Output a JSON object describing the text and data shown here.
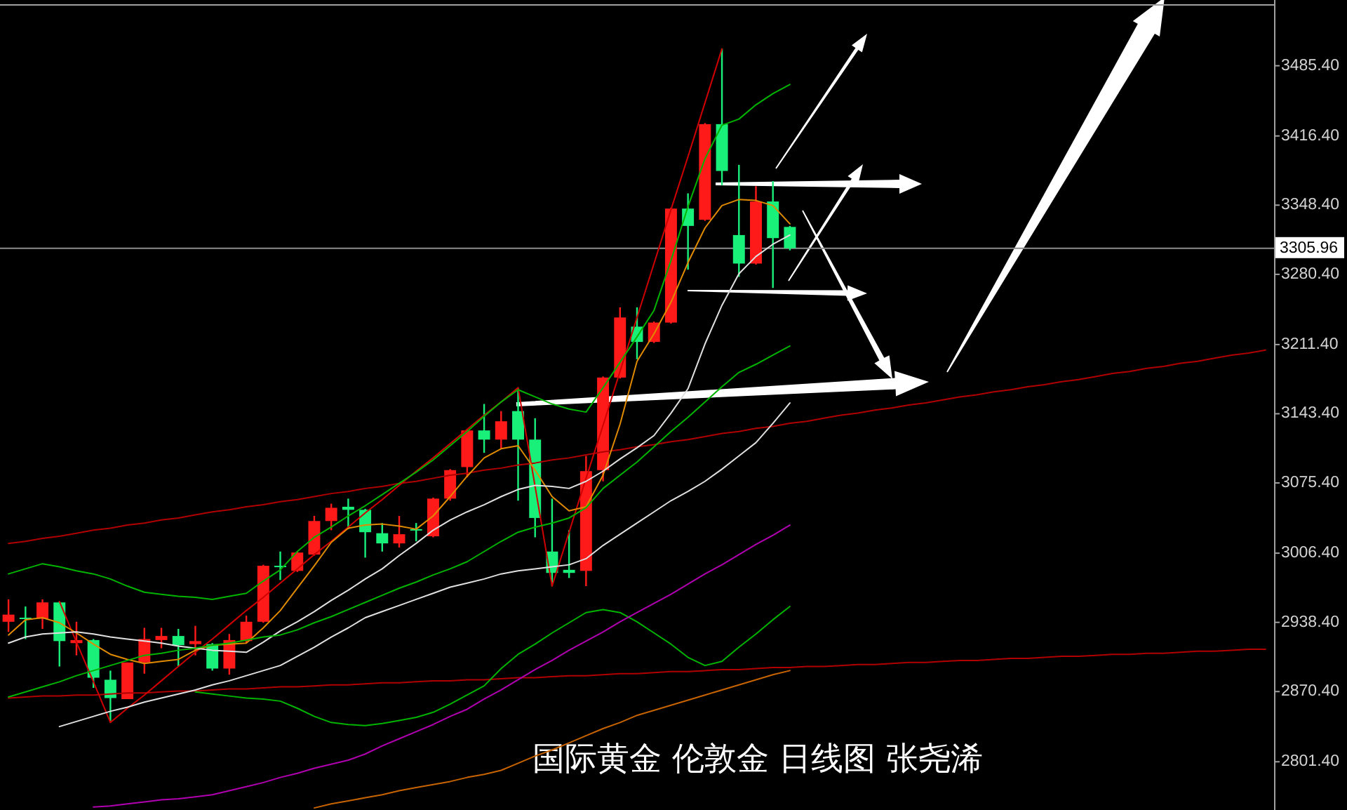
{
  "chart_data": [
    {
      "type": "candlestick",
      "annotations": [
        "国际黄金 伦敦金 日线图 张尧浠"
      ],
      "categories": [
        null,
        null,
        null,
        null,
        null,
        null,
        null,
        null,
        null,
        null,
        null,
        null,
        null,
        null,
        null,
        null,
        null,
        null,
        null,
        null,
        null,
        null,
        null,
        null,
        null,
        null,
        null,
        null,
        null,
        null,
        null,
        null,
        null,
        null,
        null,
        null,
        null,
        null,
        null,
        null,
        null,
        null,
        null,
        null,
        null,
        null,
        null,
        null,
        null,
        null,
        null,
        null,
        null,
        null,
        null,
        null,
        null,
        null,
        null,
        null,
        null,
        null,
        null,
        null,
        null,
        null,
        null,
        null,
        null,
        null,
        null,
        null,
        null,
        null,
        null
      ],
      "ohlc": [
        [
          2939,
          2961,
          2929,
          2946
        ],
        [
          2943,
          2954,
          2922,
          2942
        ],
        [
          2942,
          2961,
          2932,
          2958
        ],
        [
          2958,
          2959,
          2895,
          2920
        ],
        [
          2918,
          2939,
          2906,
          2921
        ],
        [
          2921,
          2922,
          2874,
          2884
        ],
        [
          2882,
          2891,
          2840,
          2864
        ],
        [
          2863,
          2899,
          2863,
          2899
        ],
        [
          2899,
          2933,
          2888,
          2922
        ],
        [
          2921,
          2933,
          2913,
          2925
        ],
        [
          2925,
          2932,
          2895,
          2916
        ],
        [
          2917,
          2935,
          2906,
          2920
        ],
        [
          2917,
          2918,
          2891,
          2893
        ],
        [
          2893,
          2927,
          2887,
          2921
        ],
        [
          2920,
          2945,
          2918,
          2939
        ],
        [
          2939,
          2995,
          2938,
          2994
        ],
        [
          2994,
          3008,
          2980,
          2993
        ],
        [
          2989,
          3008,
          2988,
          3007
        ],
        [
          3005,
          3043,
          3004,
          3038
        ],
        [
          3038,
          3055,
          3029,
          3051
        ],
        [
          3052,
          3060,
          3030,
          3049
        ],
        [
          3049,
          3050,
          3002,
          3027
        ],
        [
          3026,
          3036,
          3008,
          3016
        ],
        [
          3016,
          3043,
          3012,
          3025
        ],
        [
          3030,
          3036,
          3018,
          3029
        ],
        [
          3023,
          3061,
          3022,
          3060
        ],
        [
          3060,
          3089,
          3058,
          3088
        ],
        [
          3091,
          3128,
          3081,
          3127
        ],
        [
          3127,
          3153,
          3105,
          3118
        ],
        [
          3118,
          3146,
          3109,
          3136
        ],
        [
          3146,
          3169,
          3058,
          3118
        ],
        [
          3118,
          3139,
          3022,
          3041
        ],
        [
          3008,
          3060,
          2974,
          2987
        ],
        [
          2990,
          3029,
          2982,
          2987
        ],
        [
          2989,
          3102,
          2974,
          3087
        ],
        [
          3088,
          3180,
          3077,
          3179
        ],
        [
          3179,
          3248,
          3178,
          3238
        ],
        [
          3229,
          3248,
          3197,
          3214
        ],
        [
          3214,
          3234,
          3213,
          3233
        ],
        [
          3233,
          3346,
          3232,
          3345
        ],
        [
          3345,
          3360,
          3285,
          3328
        ],
        [
          3334,
          3429,
          3333,
          3428
        ],
        [
          3428,
          3502,
          3368,
          3382
        ],
        [
          3319,
          3388,
          3278,
          3291
        ],
        [
          3291,
          3367,
          3290,
          3352
        ],
        [
          3352,
          3372,
          3267,
          3316
        ],
        [
          3327,
          3328,
          3304,
          3306
        ],
        null,
        null,
        null,
        null,
        null,
        null,
        null,
        null,
        null,
        null,
        null,
        null,
        null,
        null,
        null,
        null,
        null,
        null,
        null,
        null,
        null,
        null,
        null,
        null,
        null,
        null,
        null,
        null
      ],
      "colors": [
        "#ff1a1a",
        "#19f07a",
        "#ff1a1a",
        "#19f07a",
        "#ff1a1a",
        "#19f07a",
        "#19f07a",
        "#ff1a1a",
        "#ff1a1a",
        "#ff1a1a",
        "#19f07a",
        "#ff1a1a",
        "#19f07a",
        "#ff1a1a",
        "#ff1a1a",
        "#ff1a1a",
        "#19f07a",
        "#ff1a1a",
        "#ff1a1a",
        "#ff1a1a",
        "#19f07a",
        "#19f07a",
        "#19f07a",
        "#ff1a1a",
        "#19f07a",
        "#ff1a1a",
        "#ff1a1a",
        "#ff1a1a",
        "#19f07a",
        "#ff1a1a",
        "#19f07a",
        "#19f07a",
        "#19f07a",
        "#19f07a",
        "#ff1a1a",
        "#ff1a1a",
        "#ff1a1a",
        "#19f07a",
        "#ff1a1a",
        "#ff1a1a",
        "#19f07a",
        "#ff1a1a",
        "#19f07a",
        "#19f07a",
        "#ff1a1a",
        "#19f07a",
        "#19f07a",
        null,
        null,
        null,
        null,
        null,
        null,
        null,
        null,
        null,
        null,
        null,
        null,
        null,
        null,
        null,
        null,
        null,
        null,
        null,
        null,
        null,
        null,
        null,
        null,
        null,
        null,
        null,
        null
      ],
      "ref_lines": [
        {
          "axis": "y",
          "value": 3305.96,
          "label": "3305.96",
          "color": "#8c8c8c"
        }
      ],
      "ylim": [
        2754,
        3550
      ],
      "yticks": [
        {
          "value": 3485.4,
          "label": "3485.40"
        },
        {
          "value": 3416.4,
          "label": "3416.40"
        },
        {
          "value": 3348.4,
          "label": "3348.40"
        },
        {
          "value": 3280.4,
          "label": "3280.40"
        },
        {
          "value": 3211.4,
          "label": "3211.40"
        },
        {
          "value": 3143.4,
          "label": "3143.40"
        },
        {
          "value": 3075.4,
          "label": "3075.40"
        },
        {
          "value": 3006.4,
          "label": "3006.40"
        },
        {
          "value": 2938.4,
          "label": "2938.40"
        },
        {
          "value": 2870.4,
          "label": "2870.40"
        },
        {
          "value": 2801.4,
          "label": "2801.40"
        }
      ],
      "tick_labels": "y"
    },
    {
      "type": "line",
      "categories": [
        null,
        null,
        null,
        null,
        null,
        null,
        null,
        null,
        null,
        null,
        null,
        null,
        null,
        null,
        null,
        null,
        null,
        null,
        null,
        null,
        null,
        null,
        null,
        null,
        null,
        null,
        null,
        null,
        null,
        null,
        null,
        null,
        null,
        null,
        null,
        null,
        null,
        null,
        null,
        null,
        null,
        null,
        null,
        null,
        null,
        null,
        null,
        null,
        null,
        null,
        null,
        null,
        null,
        null,
        null,
        null,
        null,
        null,
        null,
        null,
        null,
        null,
        null,
        null,
        null,
        null,
        null,
        null,
        null,
        null,
        null,
        null,
        null,
        null,
        null
      ],
      "series": [
        {
          "color": "#b00000",
          "values": [
            3016,
            3018,
            3021,
            3023,
            3026,
            3029,
            3031,
            3034,
            3036,
            3039,
            3041,
            3044,
            3047,
            3049,
            3052,
            3054,
            3057,
            3059,
            3062,
            3065,
            3067,
            3070,
            3072,
            3075,
            3077,
            3080,
            3083,
            3085,
            3088,
            3090,
            3093,
            3095,
            3098,
            3100,
            3103,
            3106,
            3108,
            3111,
            3113,
            3116,
            3118,
            3121,
            3124,
            3126,
            3129,
            3131,
            3134,
            3136,
            3139,
            3142,
            3144,
            3147,
            3149,
            3152,
            3154,
            3157,
            3160,
            3162,
            3165,
            3167,
            3170,
            3172,
            3175,
            3177,
            3180,
            3183,
            3185,
            3188,
            3190,
            3193,
            3195,
            3198,
            3201,
            3203,
            3206
          ]
        },
        {
          "color": "#b00000",
          "values": [
            2864,
            2865,
            2866,
            2866,
            2867,
            2867,
            2868,
            2869,
            2869,
            2870,
            2871,
            2871,
            2872,
            2873,
            2873,
            2874,
            2875,
            2875,
            2876,
            2877,
            2877,
            2878,
            2879,
            2879,
            2880,
            2881,
            2881,
            2882,
            2882,
            2883,
            2884,
            2884,
            2885,
            2886,
            2886,
            2887,
            2888,
            2888,
            2889,
            2890,
            2890,
            2891,
            2892,
            2892,
            2893,
            2894,
            2894,
            2895,
            2895,
            2896,
            2897,
            2897,
            2898,
            2899,
            2899,
            2900,
            2901,
            2901,
            2902,
            2903,
            2903,
            2904,
            2905,
            2905,
            2906,
            2907,
            2907,
            2908,
            2908,
            2909,
            2910,
            2910,
            2911,
            2912,
            2912
          ]
        },
        {
          "color": "#d00000",
          "values": [
            null,
            null,
            null,
            2959,
            2919,
            2880,
            2840,
            2854,
            2867,
            2881,
            2895,
            2909,
            2922,
            2936,
            2950,
            2963,
            2977,
            2991,
            3005,
            3018,
            3032,
            3046,
            3059,
            3073,
            3087,
            3100,
            3114,
            3128,
            3142,
            3155,
            3169,
            3072,
            2974,
            3027,
            3080,
            3132,
            3185,
            3238,
            3291,
            3344,
            3396,
            3449,
            3502,
            null,
            null,
            null,
            null,
            null,
            null,
            null,
            null,
            null,
            null,
            null,
            null,
            null,
            null,
            null,
            null,
            null,
            null,
            null,
            null,
            null,
            null,
            null,
            null,
            null,
            null,
            null,
            null,
            null,
            null,
            null,
            null
          ]
        },
        {
          "color": "#e08a00",
          "values": [
            2926,
            2941,
            2943,
            2938,
            2928,
            2917,
            2907,
            2902,
            2898,
            2900,
            2902,
            2911,
            2916,
            2917,
            2918,
            2933,
            2950,
            2972,
            2994,
            3017,
            3031,
            3034,
            3035,
            3033,
            3030,
            3043,
            3062,
            3082,
            3100,
            3109,
            3112,
            3088,
            3062,
            3048,
            3052,
            3083,
            3133,
            3195,
            3222,
            3253,
            3292,
            3326,
            3348,
            3354,
            3353,
            3348,
            3330,
            null,
            null,
            null,
            null,
            null,
            null,
            null,
            null,
            null,
            null,
            null,
            null,
            null,
            null,
            null,
            null,
            null,
            null,
            null,
            null,
            null,
            null,
            null,
            null,
            null,
            null,
            null,
            null
          ]
        },
        {
          "color": "#e0e0e0",
          "values": [
            2918,
            2924,
            2927,
            2928,
            2929,
            2927,
            2924,
            2922,
            2920,
            2918,
            2915,
            2913,
            2911,
            2910,
            2909,
            2919,
            2930,
            2939,
            2949,
            2960,
            2970,
            2981,
            2991,
            3004,
            3016,
            3029,
            3039,
            3047,
            3054,
            3062,
            3069,
            3073,
            3072,
            3070,
            3077,
            3087,
            3099,
            3110,
            3122,
            3144,
            3168,
            3212,
            3250,
            3281,
            3298,
            3310,
            3319,
            null,
            null,
            null,
            null,
            null,
            null,
            null,
            null,
            null,
            null,
            null,
            null,
            null,
            null,
            null,
            null,
            null,
            null,
            null,
            null,
            null,
            null,
            null,
            null,
            null,
            null,
            null,
            null
          ]
        },
        {
          "color": "#00b400",
          "values": [
            2986,
            2991,
            2996,
            2993,
            2989,
            2986,
            2981,
            2974,
            2968,
            2966,
            2964,
            2963,
            2961,
            2964,
            2967,
            2979,
            2990,
            3008,
            3022,
            3032,
            3043,
            3053,
            3064,
            3075,
            3086,
            3098,
            3112,
            3126,
            3141,
            3155,
            3167,
            3160,
            3153,
            3148,
            3145,
            3169,
            3194,
            3219,
            3245,
            3294,
            3347,
            3394,
            3427,
            3433,
            3447,
            3458,
            3467,
            null,
            null,
            null,
            null,
            null,
            null,
            null,
            null,
            null,
            null,
            null,
            null,
            null,
            null,
            null,
            null,
            null,
            null,
            null,
            null,
            null,
            null,
            null,
            null,
            null,
            null,
            null,
            null
          ]
        },
        {
          "color": "#00b400",
          "values": [
            2865,
            2870,
            2875,
            2880,
            2886,
            2891,
            2896,
            2901,
            2906,
            2908,
            2911,
            2913,
            2916,
            2918,
            2921,
            2924,
            2926,
            2931,
            2938,
            2944,
            2951,
            2958,
            2965,
            2972,
            2978,
            2985,
            2991,
            2998,
            3008,
            3018,
            3027,
            3032,
            3036,
            3041,
            3051,
            3070,
            3083,
            3096,
            3111,
            3126,
            3140,
            3155,
            3170,
            3184,
            3192,
            3201,
            3210,
            null,
            null,
            null,
            null,
            null,
            null,
            null,
            null,
            null,
            null,
            null,
            null,
            null,
            null,
            null,
            null,
            null,
            null,
            null,
            null,
            null,
            null,
            null,
            null,
            null,
            null,
            null,
            null
          ]
        },
        {
          "color": "#00b400",
          "values": [
            null,
            null,
            null,
            null,
            null,
            null,
            null,
            null,
            null,
            null,
            null,
            2870,
            2868,
            2866,
            2864,
            2863,
            2861,
            2854,
            2846,
            2840,
            2838,
            2837,
            2839,
            2842,
            2845,
            2850,
            2858,
            2867,
            2876,
            2893,
            2907,
            2917,
            2928,
            2938,
            2948,
            2951,
            2948,
            2939,
            2928,
            2917,
            2904,
            2896,
            2900,
            2914,
            2927,
            2941,
            2954,
            null,
            null,
            null,
            null,
            null,
            null,
            null,
            null,
            null,
            null,
            null,
            null,
            null,
            null,
            null,
            null,
            null,
            null,
            null,
            null,
            null,
            null,
            null,
            null,
            null,
            null,
            null,
            null
          ]
        },
        {
          "color": "#e0e0e0",
          "values": [
            null,
            null,
            null,
            2836,
            2841,
            2846,
            2851,
            2855,
            2860,
            2864,
            2868,
            2872,
            2877,
            2881,
            2886,
            2891,
            2896,
            2905,
            2914,
            2924,
            2933,
            2943,
            2949,
            2955,
            2961,
            2967,
            2973,
            2977,
            2981,
            2986,
            2989,
            2991,
            2993,
            2995,
            3001,
            3014,
            3025,
            3036,
            3047,
            3058,
            3067,
            3077,
            3089,
            3102,
            3115,
            3134,
            3154,
            null,
            null,
            null,
            null,
            null,
            null,
            null,
            null,
            null,
            null,
            null,
            null,
            null,
            null,
            null,
            null,
            null,
            null,
            null,
            null,
            null,
            null,
            null,
            null,
            null,
            null,
            null,
            null
          ]
        },
        {
          "color": "#b000b0",
          "values": [
            null,
            null,
            null,
            null,
            null,
            2757,
            2758,
            2760,
            2762,
            2764,
            2765,
            2767,
            2769,
            2773,
            2777,
            2781,
            2786,
            2790,
            2795,
            2799,
            2803,
            2809,
            2817,
            2824,
            2831,
            2838,
            2846,
            2853,
            2863,
            2872,
            2882,
            2892,
            2901,
            2911,
            2920,
            2929,
            2939,
            2948,
            2957,
            2966,
            2976,
            2986,
            2995,
            3005,
            3015,
            3024,
            3034,
            null,
            null,
            null,
            null,
            null,
            null,
            null,
            null,
            null,
            null,
            null,
            null,
            null,
            null,
            null,
            null,
            null,
            null,
            null,
            null,
            null,
            null,
            null,
            null,
            null,
            null,
            null,
            null
          ]
        },
        {
          "color": "#c86400",
          "values": [
            null,
            null,
            null,
            null,
            null,
            null,
            null,
            null,
            null,
            null,
            null,
            null,
            null,
            null,
            null,
            null,
            null,
            null,
            2756,
            2760,
            2763,
            2766,
            2769,
            2773,
            2776,
            2779,
            2782,
            2786,
            2789,
            2793,
            2800,
            2807,
            2813,
            2820,
            2827,
            2834,
            2840,
            2847,
            2852,
            2857,
            2862,
            2867,
            2872,
            2877,
            2882,
            2887,
            2891,
            null,
            null,
            null,
            null,
            null,
            null,
            null,
            null,
            null,
            null,
            null,
            null,
            null,
            null,
            null,
            null,
            null,
            null,
            null,
            null,
            null,
            null,
            null,
            null,
            null,
            null,
            null,
            null
          ]
        }
      ],
      "ylim": [
        2754,
        3550
      ],
      "tick_labels": false
    }
  ]
}
